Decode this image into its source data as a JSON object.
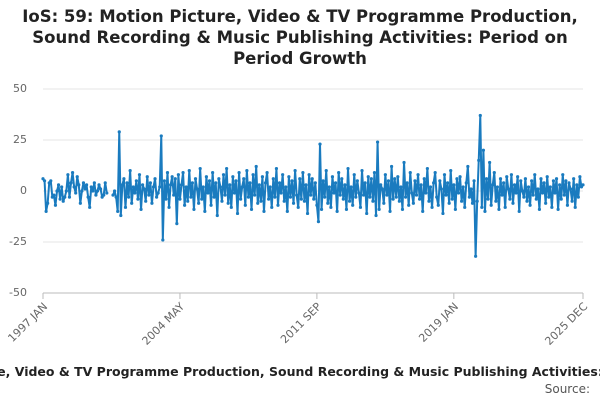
{
  "chart_data": {
    "type": "line",
    "title": "IoS: 59: Motion Picture, Video & TV Programme Production, Sound Recording & Music Publishing Activities: Period on Period Growth",
    "caption": "e, Video & TV Programme Production, Sound Recording & Music Publishing Activities:",
    "source": "Source:",
    "color": "#1a7bbf",
    "grid": true,
    "ylim": [
      -50,
      50
    ],
    "yticks": [
      -50,
      -25,
      0,
      25,
      50
    ],
    "categories": [
      "1997 JAN",
      null,
      null,
      null,
      null,
      null,
      null,
      null,
      null,
      null,
      null,
      null,
      null,
      null,
      null,
      null,
      null,
      null,
      null,
      null,
      null,
      null,
      null,
      null,
      null,
      null,
      null,
      null,
      null,
      null,
      null,
      null,
      null,
      null,
      null,
      null,
      null,
      null,
      null,
      null,
      null,
      null,
      null,
      null,
      null,
      null,
      null,
      null,
      null,
      null,
      null,
      null,
      null,
      null,
      null,
      null,
      null,
      null,
      null,
      null,
      null,
      null,
      null,
      null,
      null,
      null,
      null,
      null,
      null,
      null,
      null,
      null,
      null,
      null,
      null,
      null,
      null,
      null,
      null,
      null,
      null,
      null,
      null,
      null,
      null,
      null,
      null,
      null,
      "2004 MAY",
      null,
      null,
      null,
      null,
      null,
      null,
      null,
      null,
      null,
      null,
      null,
      null,
      null,
      null,
      null,
      null,
      null,
      null,
      null,
      null,
      null,
      null,
      null,
      null,
      null,
      null,
      null,
      null,
      null,
      null,
      null,
      null,
      null,
      null,
      null,
      null,
      null,
      null,
      null,
      null,
      null,
      null,
      null,
      null,
      null,
      null,
      null,
      null,
      null,
      null,
      null,
      null,
      null,
      null,
      null,
      null,
      null,
      null,
      null,
      null,
      null,
      null,
      null,
      null,
      null,
      null,
      null,
      null,
      null,
      null,
      null,
      null,
      null,
      null,
      null,
      null,
      null,
      null,
      null,
      null,
      null,
      null,
      null,
      null,
      null,
      null,
      null,
      "2011 SEP",
      null,
      null,
      null,
      null,
      null,
      null,
      null,
      null,
      null,
      null,
      null,
      null,
      null,
      null,
      null,
      null,
      null,
      null,
      null,
      null,
      null,
      null,
      null,
      null,
      null,
      null,
      null,
      null,
      null,
      null,
      null,
      null,
      null,
      null,
      null,
      null,
      null,
      null,
      null,
      null,
      null,
      null,
      null,
      null,
      null,
      null,
      null,
      null,
      null,
      null,
      null,
      null,
      null,
      null,
      null,
      null,
      null,
      null,
      null,
      null,
      null,
      null,
      null,
      null,
      null,
      null,
      null,
      null,
      null,
      null,
      null,
      null,
      null,
      null,
      null,
      null,
      null,
      null,
      null,
      null,
      null,
      null,
      null,
      null,
      null,
      null,
      null,
      "2019 JAN",
      null,
      null,
      null,
      null,
      null,
      null,
      null,
      null,
      null,
      null,
      null,
      null,
      null,
      null,
      null,
      null,
      null,
      null,
      null,
      null,
      null,
      null,
      null,
      null,
      null,
      null,
      null,
      null,
      null,
      null,
      null,
      null,
      null,
      null,
      null,
      null,
      null,
      null,
      null,
      null,
      null,
      null,
      null,
      null,
      null,
      null,
      null,
      null,
      null,
      null,
      null,
      null,
      null,
      null,
      null,
      null,
      null,
      null,
      null,
      null,
      null,
      null,
      null,
      null,
      null,
      null,
      null,
      null,
      null,
      null,
      null,
      null,
      null,
      null,
      null,
      null,
      null,
      null,
      null,
      null,
      null,
      null,
      "2025 DEC"
    ],
    "values": [
      6,
      5,
      -10,
      -6,
      4,
      5,
      -3,
      -2,
      -7,
      0,
      3,
      -4,
      2,
      -5,
      -3,
      0,
      8,
      -3,
      4,
      9,
      2,
      -1,
      7,
      3,
      -6,
      0,
      4,
      1,
      3,
      -3,
      -8,
      2,
      0,
      4,
      -2,
      0,
      3,
      1,
      -3,
      -2,
      4,
      -1,
      null,
      null,
      null,
      -2,
      0,
      -3,
      -10,
      29,
      -12,
      3,
      6,
      -8,
      4,
      -3,
      10,
      -6,
      2,
      -1,
      5,
      -4,
      8,
      -9,
      3,
      1,
      -5,
      7,
      -2,
      4,
      -6,
      2,
      6,
      -3,
      -1,
      2,
      27,
      -24,
      5,
      -4,
      9,
      -8,
      3,
      7,
      -2,
      6,
      -16,
      8,
      -4,
      3,
      9,
      -7,
      2,
      -5,
      10,
      -3,
      4,
      -9,
      6,
      1,
      -6,
      11,
      -4,
      2,
      -10,
      7,
      -1,
      5,
      -7,
      9,
      -3,
      4,
      -12,
      6,
      2,
      -5,
      8,
      -2,
      11,
      -6,
      3,
      -8,
      7,
      -1,
      5,
      -11,
      9,
      -4,
      2,
      6,
      -7,
      10,
      -3,
      4,
      -9,
      8,
      -2,
      12,
      -6,
      3,
      -5,
      7,
      -10,
      4,
      9,
      -4,
      2,
      -8,
      6,
      -3,
      11,
      -7,
      4,
      -1,
      8,
      -5,
      2,
      -10,
      7,
      -3,
      5,
      -6,
      10,
      -2,
      -8,
      6,
      -4,
      9,
      -5,
      3,
      -11,
      8,
      -2,
      6,
      -4,
      4,
      -7,
      -15,
      23,
      -9,
      5,
      -3,
      10,
      -6,
      2,
      -8,
      7,
      -1,
      4,
      -10,
      9,
      -2,
      6,
      -4,
      3,
      -9,
      11,
      -5,
      2,
      -7,
      8,
      -3,
      5,
      -1,
      -8,
      10,
      -2,
      4,
      -11,
      7,
      -3,
      6,
      -5,
      9,
      -12,
      24,
      -9,
      3,
      1,
      -6,
      8,
      -2,
      5,
      -10,
      12,
      -4,
      6,
      -3,
      7,
      -5,
      2,
      -9,
      14,
      -3,
      4,
      -7,
      9,
      -1,
      -6,
      5,
      -2,
      8,
      -4,
      3,
      -10,
      6,
      -1,
      11,
      -5,
      2,
      -8,
      4,
      9,
      -3,
      -7,
      5,
      1,
      -11,
      8,
      -2,
      4,
      -6,
      10,
      -4,
      3,
      -9,
      6,
      -1,
      7,
      -5,
      2,
      -8,
      4,
      12,
      -3,
      1,
      -6,
      5,
      -32,
      -5,
      15,
      37,
      -8,
      20,
      -10,
      6,
      -4,
      14,
      -7,
      3,
      9,
      -5,
      2,
      -9,
      6,
      -2,
      4,
      -8,
      7,
      1,
      -4,
      8,
      -6,
      3,
      -1,
      7,
      -10,
      5,
      0,
      -3,
      6,
      -5,
      2,
      -7,
      5,
      -2,
      8,
      -4,
      1,
      -9,
      6,
      -1,
      4,
      -6,
      7,
      -3,
      2,
      -8,
      5,
      -1,
      6,
      -9,
      3,
      -4,
      8,
      -2,
      5,
      -7,
      4,
      1,
      -5,
      6,
      -8,
      3,
      -3,
      7,
      2,
      3
    ]
  }
}
